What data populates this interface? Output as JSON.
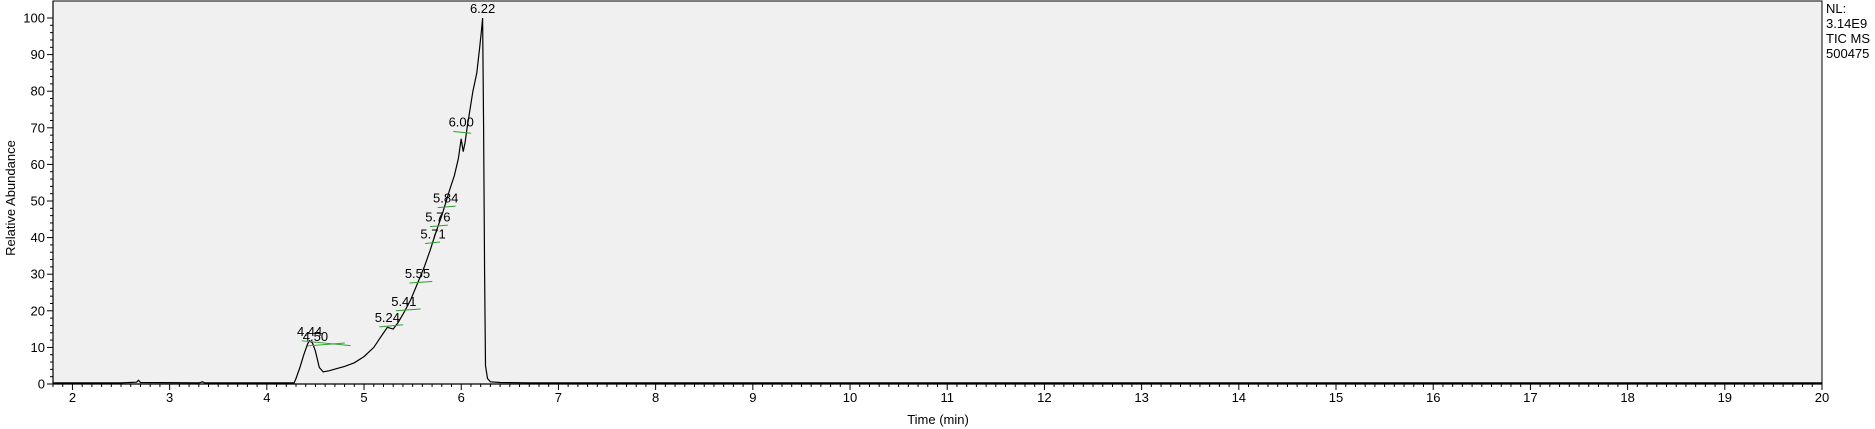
{
  "colors": {
    "plot_background": "#f0f0f0",
    "trace": "#000000",
    "annotation_line": "#2ca02c",
    "axis": "#000000"
  },
  "info": {
    "line1": "NL:",
    "line2": "3.14E9",
    "line3": "TIC  MS",
    "line4": "500475"
  },
  "chart_data": {
    "type": "line",
    "title": "",
    "xlabel": "Time (min)",
    "ylabel": "Relative Abundance",
    "xlim": [
      1.8,
      20.0
    ],
    "ylim": [
      0,
      100
    ],
    "x_ticks": [
      2,
      3,
      4,
      5,
      6,
      7,
      8,
      9,
      10,
      11,
      12,
      13,
      14,
      15,
      16,
      17,
      18,
      19,
      20
    ],
    "y_ticks": [
      0,
      10,
      20,
      30,
      40,
      50,
      60,
      70,
      80,
      90,
      100
    ],
    "grid": false,
    "legend": "none",
    "series": [
      {
        "x": [
          1.8,
          2.5,
          2.66,
          2.68,
          2.7,
          3.3,
          3.34,
          3.36,
          4.28,
          4.3,
          4.34,
          4.38,
          4.42,
          4.44,
          4.47,
          4.5,
          4.54,
          4.58,
          4.64,
          4.72,
          4.8,
          4.9,
          5.0,
          5.1,
          5.17,
          5.24,
          5.3,
          5.35,
          5.41,
          5.48,
          5.55,
          5.62,
          5.68,
          5.71,
          5.74,
          5.76,
          5.8,
          5.84,
          5.88,
          5.93,
          5.97,
          6.0,
          6.02,
          6.04,
          6.06,
          6.09,
          6.12,
          6.16,
          6.19,
          6.21,
          6.22,
          6.23,
          6.24,
          6.25,
          6.27,
          6.3,
          6.4,
          6.7,
          7.0,
          20.0
        ],
        "y": [
          0.3,
          0.3,
          0.5,
          1.0,
          0.4,
          0.3,
          0.6,
          0.3,
          0.3,
          1.5,
          4.5,
          8.0,
          11.0,
          11.8,
          11.2,
          9.0,
          4.5,
          3.3,
          3.6,
          4.2,
          4.8,
          5.8,
          7.5,
          10.0,
          12.8,
          15.5,
          15.0,
          16.8,
          19.5,
          23.0,
          27.5,
          32.0,
          36.5,
          39.0,
          41.5,
          43.0,
          46.0,
          49.5,
          53.0,
          57.0,
          61.5,
          67.0,
          63.5,
          66.0,
          70.0,
          75.0,
          80.0,
          85.0,
          92.0,
          97.0,
          100.0,
          70.0,
          30.0,
          5.0,
          1.5,
          0.6,
          0.4,
          0.3,
          0.3,
          0.3
        ]
      }
    ],
    "peak_labels": [
      {
        "text": "4.44",
        "x": 4.44,
        "y": 11.8,
        "line_x2": 4.78,
        "line_y2": 10.5
      },
      {
        "text": "4.50",
        "x": 4.5,
        "y": 10.4,
        "line_x2": 4.72,
        "line_y2": 11.2
      },
      {
        "text": "5.24",
        "x": 5.24,
        "y": 15.6,
        "line_x2": 5.32,
        "line_y2": 16.2
      },
      {
        "text": "5.41",
        "x": 5.41,
        "y": 20.0,
        "line_x2": 5.5,
        "line_y2": 20.5
      },
      {
        "text": "5.55",
        "x": 5.55,
        "y": 27.6,
        "line_x2": 5.62,
        "line_y2": 28.0
      },
      {
        "text": "5.71",
        "x": 5.71,
        "y": 38.4,
        "line_x2": 5.7,
        "line_y2": 38.8
      },
      {
        "text": "5.76",
        "x": 5.76,
        "y": 43.0,
        "line_x2": 5.78,
        "line_y2": 43.4
      },
      {
        "text": "5.84",
        "x": 5.84,
        "y": 48.2,
        "line_x2": 5.86,
        "line_y2": 48.6
      },
      {
        "text": "6.00",
        "x": 6.0,
        "y": 69.0,
        "line_x2": 6.02,
        "line_y2": 68.5
      },
      {
        "text": "6.22",
        "x": 6.22,
        "y": 100.0
      }
    ]
  }
}
